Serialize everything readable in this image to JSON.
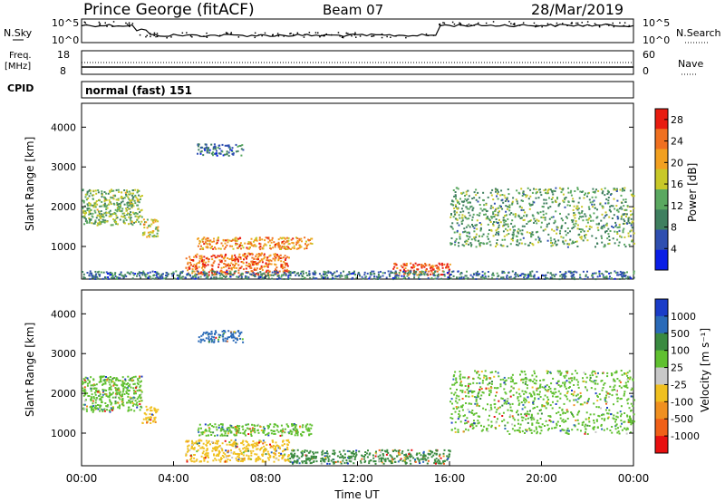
{
  "header": {
    "station": "Prince George (fitACF)",
    "beam": "Beam 07",
    "date": "28/Mar/2019"
  },
  "top_panels": {
    "nsky_label": "N.Sky",
    "nsearch_label": "N.Search",
    "freq_label": "Freq.",
    "freq_unit": "[MHz]",
    "nave_label": "Nave",
    "cpid_label": "CPID",
    "cpid_value": "normal (fast) 151",
    "noise_ticks_left": [
      "10^5",
      "10^0"
    ],
    "noise_ticks_right": [
      "10^5",
      "10^0"
    ],
    "freq_ticks": [
      "18",
      "8"
    ],
    "nave_ticks": [
      "60",
      "0"
    ]
  },
  "chart_data": [
    {
      "type": "heatmap",
      "title": "",
      "xlabel": "Time UT",
      "ylabel": "Slant Range [km]",
      "x_ticks": [
        "00:00",
        "04:00",
        "08:00",
        "12:00",
        "16:00",
        "20:00",
        "00:00"
      ],
      "xlim_hours": [
        0,
        24
      ],
      "y_ticks": [
        1000,
        2000,
        3000,
        4000
      ],
      "ylim": [
        180,
        4600
      ],
      "colorbar": {
        "label": "Power [dB]",
        "ticks": [
          4,
          8,
          12,
          16,
          20,
          24,
          28
        ],
        "range": [
          0,
          30
        ],
        "colors": [
          "#0a1ee6",
          "#2f4fb0",
          "#3f7f5f",
          "#5aa860",
          "#c8c828",
          "#f2a020",
          "#f07020",
          "#e81c10"
        ]
      },
      "regions": [
        {
          "t": [
            0.0,
            2.6
          ],
          "r": [
            1550,
            2450
          ],
          "level": 14
        },
        {
          "t": [
            2.6,
            3.3
          ],
          "r": [
            1250,
            1700
          ],
          "level": 18
        },
        {
          "t": [
            5.0,
            10.0
          ],
          "r": [
            950,
            1250
          ],
          "level": 22
        },
        {
          "t": [
            4.5,
            9.0
          ],
          "r": [
            300,
            850
          ],
          "level": 24
        },
        {
          "t": [
            13.5,
            16.0
          ],
          "r": [
            300,
            600
          ],
          "level": 26
        },
        {
          "t": [
            16.0,
            24.0
          ],
          "r": [
            1000,
            2500
          ],
          "level": 12
        },
        {
          "t": [
            5.0,
            7.0
          ],
          "r": [
            3300,
            3600
          ],
          "level": 8
        },
        {
          "t": [
            0.0,
            24.0
          ],
          "r": [
            200,
            400
          ],
          "level": 8
        }
      ]
    },
    {
      "type": "heatmap",
      "title": "",
      "xlabel": "Time UT",
      "ylabel": "Slant Range [km]",
      "x_ticks": [
        "00:00",
        "04:00",
        "08:00",
        "12:00",
        "16:00",
        "20:00",
        "00:00"
      ],
      "xlim_hours": [
        0,
        24
      ],
      "y_ticks": [
        1000,
        2000,
        3000,
        4000
      ],
      "ylim": [
        180,
        4600
      ],
      "colorbar": {
        "label": "Velocity [m s⁻¹]",
        "ticks": [
          "1000",
          "500",
          "100",
          "25",
          "-25",
          "-100",
          "-500",
          "-1000"
        ],
        "colors": [
          "#1a3cc8",
          "#2a6ab8",
          "#3a8a40",
          "#60c030",
          "#c8c8c8",
          "#f0c020",
          "#f09020",
          "#f06018",
          "#e81010"
        ]
      },
      "regions": [
        {
          "t": [
            0.0,
            2.6
          ],
          "r": [
            1550,
            2450
          ],
          "level": "25"
        },
        {
          "t": [
            2.6,
            3.3
          ],
          "r": [
            1250,
            1700
          ],
          "level": "-100"
        },
        {
          "t": [
            5.0,
            10.0
          ],
          "r": [
            950,
            1250
          ],
          "level": "25"
        },
        {
          "t": [
            4.5,
            9.0
          ],
          "r": [
            300,
            850
          ],
          "level": "-100"
        },
        {
          "t": [
            9.0,
            16.0
          ],
          "r": [
            250,
            600
          ],
          "level": "100"
        },
        {
          "t": [
            16.0,
            24.0
          ],
          "r": [
            1000,
            2600
          ],
          "level": "25"
        },
        {
          "t": [
            5.0,
            7.0
          ],
          "r": [
            3300,
            3600
          ],
          "level": "500"
        }
      ]
    }
  ]
}
